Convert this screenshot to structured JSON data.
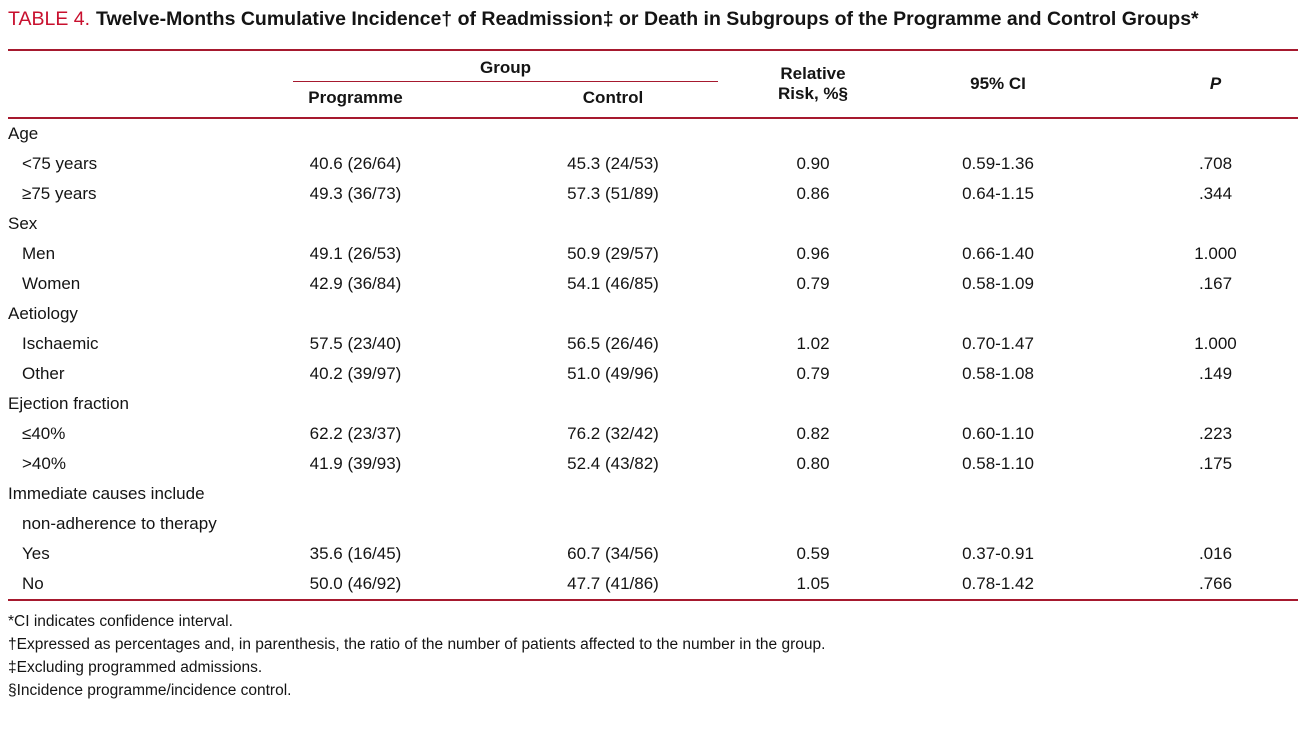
{
  "title": {
    "label": "TABLE 4.",
    "text": "Twelve-Months Cumulative Incidence† of Readmission‡ or Death in Subgroups of the Programme and Control Groups*"
  },
  "table": {
    "group_header": "Group",
    "columns": [
      "Programme",
      "Control",
      "Relative Risk, %§",
      "95% CI",
      "P"
    ],
    "rows": [
      {
        "type": "section",
        "label": "Age"
      },
      {
        "type": "data",
        "label": "<75 years",
        "programme": "40.6 (26/64)",
        "control": "45.3 (24/53)",
        "rr": "0.90",
        "ci": "0.59-1.36",
        "p": ".708"
      },
      {
        "type": "data",
        "label": "≥75 years",
        "programme": "49.3 (36/73)",
        "control": "57.3 (51/89)",
        "rr": "0.86",
        "ci": "0.64-1.15",
        "p": ".344"
      },
      {
        "type": "section",
        "label": "Sex"
      },
      {
        "type": "data",
        "label": "Men",
        "programme": "49.1 (26/53)",
        "control": "50.9 (29/57)",
        "rr": "0.96",
        "ci": "0.66-1.40",
        "p": "1.000"
      },
      {
        "type": "data",
        "label": "Women",
        "programme": "42.9 (36/84)",
        "control": "54.1 (46/85)",
        "rr": "0.79",
        "ci": "0.58-1.09",
        "p": ".167"
      },
      {
        "type": "section",
        "label": "Aetiology"
      },
      {
        "type": "data",
        "label": "Ischaemic",
        "programme": "57.5 (23/40)",
        "control": "56.5 (26/46)",
        "rr": "1.02",
        "ci": "0.70-1.47",
        "p": "1.000"
      },
      {
        "type": "data",
        "label": "Other",
        "programme": "40.2 (39/97)",
        "control": "51.0 (49/96)",
        "rr": "0.79",
        "ci": "0.58-1.08",
        "p": ".149"
      },
      {
        "type": "section",
        "label": "Ejection fraction"
      },
      {
        "type": "data",
        "label": "≤40%",
        "programme": "62.2 (23/37)",
        "control": "76.2 (32/42)",
        "rr": "0.82",
        "ci": "0.60-1.10",
        "p": ".223"
      },
      {
        "type": "data",
        "label": ">40%",
        "programme": "41.9 (39/93)",
        "control": "52.4 (43/82)",
        "rr": "0.80",
        "ci": "0.58-1.10",
        "p": ".175"
      },
      {
        "type": "section",
        "label": "Immediate causes include"
      },
      {
        "type": "section-cont",
        "label": "non-adherence to therapy"
      },
      {
        "type": "data",
        "label": "Yes",
        "programme": "35.6 (16/45)",
        "control": "60.7 (34/56)",
        "rr": "0.59",
        "ci": "0.37-0.91",
        "p": ".016"
      },
      {
        "type": "data",
        "label": "No",
        "programme": "50.0 (46/92)",
        "control": "47.7 (41/86)",
        "rr": "1.05",
        "ci": "0.78-1.42",
        "p": ".766"
      }
    ]
  },
  "footnotes": [
    "*CI indicates confidence interval.",
    "†Expressed as percentages and, in parenthesis, the ratio of the number of patients affected to the number in the group.",
    "‡Excluding programmed admissions.",
    "§Incidence programme/incidence control."
  ],
  "colors": {
    "accent": "#c8102e",
    "rule": "#a6192e",
    "text": "#141414",
    "bg": "#ffffff"
  }
}
